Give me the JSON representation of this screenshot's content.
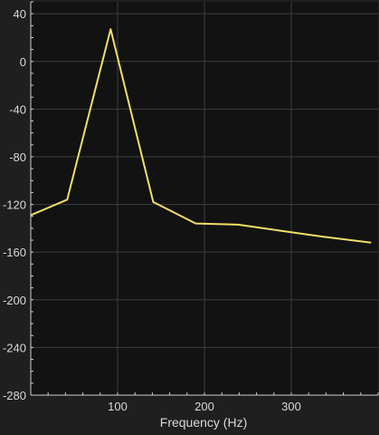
{
  "chart_data": {
    "type": "line",
    "title": "",
    "xlabel": "Frequency (Hz)",
    "ylabel": "",
    "xlim": [
      0,
      400
    ],
    "ylim": [
      -280,
      50
    ],
    "grid": true,
    "legend": "none",
    "x_ticks": [
      100,
      200,
      300
    ],
    "y_ticks": [
      40,
      0,
      -40,
      -80,
      -120,
      -160,
      -200,
      -240,
      -280
    ],
    "series": [
      {
        "color": "#f2df68",
        "x": [
          0,
          42,
          92,
          141,
          190,
          239,
          287,
          336,
          392
        ],
        "y": [
          -129,
          -116,
          27,
          -118,
          -136,
          -137,
          -142,
          -147,
          -152
        ]
      }
    ],
    "colors": {
      "background": "#1f1f1f",
      "plot_background": "#121212",
      "grid": "#3d3d3d",
      "axis": "#cfcfcf",
      "text": "#d9d9d9"
    }
  }
}
